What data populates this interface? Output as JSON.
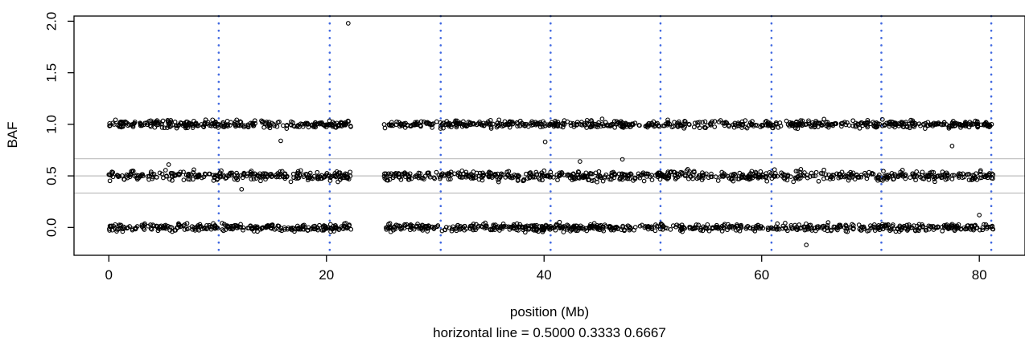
{
  "chart_data": {
    "type": "scatter",
    "title": "",
    "xlabel": "position (Mb)",
    "ylabel": "BAF",
    "caption": "horizontal line =  0.5000 0.3333 0.6667",
    "xlim": [
      -3.2,
      84.2
    ],
    "ylim": [
      -0.27,
      2.05
    ],
    "x_ticks": [
      0,
      20,
      40,
      60,
      80
    ],
    "x_tick_labels": [
      "0",
      "20",
      "40",
      "60",
      "80"
    ],
    "y_ticks": [
      0.0,
      0.5,
      1.0,
      1.5,
      2.0
    ],
    "y_tick_labels": [
      "0.0",
      "0.5",
      "1.0",
      "1.5",
      "2.0"
    ],
    "grid": false,
    "horizontal_lines": [
      0.5,
      0.3333,
      0.6667
    ],
    "horizontal_line_color": "#bebebe",
    "vertical_lines_mb": [
      10.1,
      20.3,
      30.5,
      40.6,
      50.7,
      60.9,
      71.0,
      81.1
    ],
    "vertical_line_color": "#4169e1",
    "point_color": "#000000",
    "series": [
      {
        "segments_mb": [
          [
            0,
            22.3
          ],
          [
            25.3,
            81.3
          ]
        ],
        "bands": [
          {
            "center": 0.0,
            "spread": 0.035
          },
          {
            "center": 0.5,
            "spread": 0.045
          },
          {
            "center": 1.0,
            "spread": 0.035
          }
        ]
      }
    ],
    "outliers": [
      {
        "x": 22.0,
        "y": 1.98
      },
      {
        "x": 15.8,
        "y": 0.84
      },
      {
        "x": 40.1,
        "y": 0.83
      },
      {
        "x": 77.5,
        "y": 0.79
      },
      {
        "x": 43.3,
        "y": 0.64
      },
      {
        "x": 47.2,
        "y": 0.66
      },
      {
        "x": 64.1,
        "y": -0.17
      },
      {
        "x": 80.0,
        "y": 0.12
      },
      {
        "x": 5.5,
        "y": 0.61
      },
      {
        "x": 12.2,
        "y": 0.37
      }
    ]
  }
}
